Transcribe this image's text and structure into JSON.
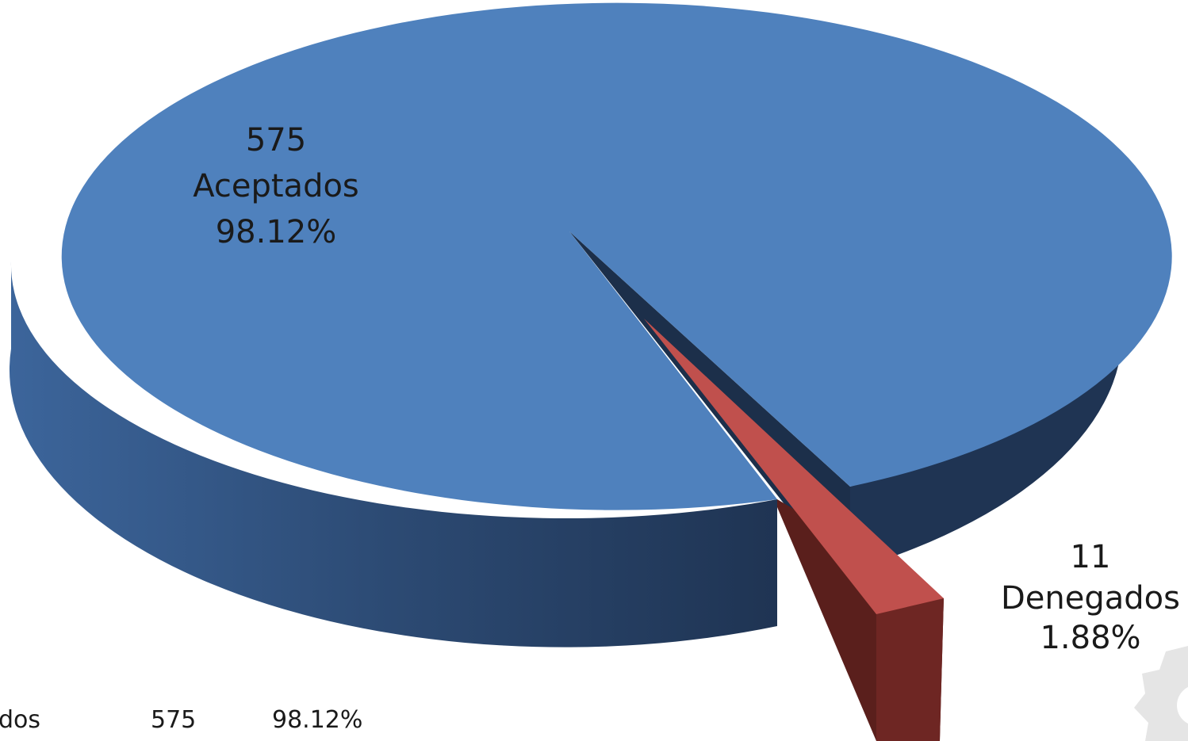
{
  "chart_data": {
    "type": "pie",
    "style": "3d-exploded",
    "categories": [
      "Aceptados",
      "Denegados"
    ],
    "values": [
      575,
      11
    ],
    "percents": [
      "98.12%",
      "1.88%"
    ],
    "colors": [
      "#4f81bd",
      "#c0504d"
    ],
    "data_labels": [
      {
        "value": "575",
        "category": "Aceptados",
        "percent": "98.12%"
      },
      {
        "value": "11",
        "category": "Denegados",
        "percent": "1.88%"
      }
    ]
  },
  "table_row": {
    "label_fragment": "dos",
    "value": "575",
    "percent": "98.12%"
  }
}
